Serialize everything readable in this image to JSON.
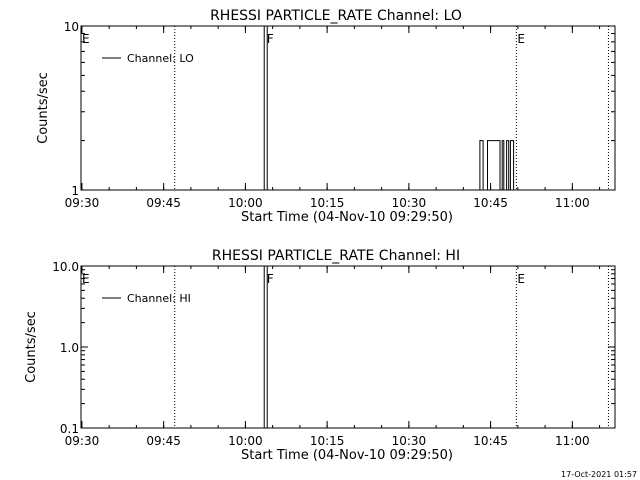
{
  "footer_timestamp": "17-Oct-2021 01:57",
  "chart_data": [
    {
      "type": "line",
      "title": "RHESSI PARTICLE_RATE Channel: LO",
      "xlabel": "Start Time (04-Nov-10 09:29:50)",
      "ylabel": "Counts/sec",
      "x_tick_labels": [
        "09:30",
        "09:45",
        "10:00",
        "10:15",
        "10:30",
        "10:45",
        "11:00"
      ],
      "x_tick_minutes": [
        0.17,
        15.17,
        30.17,
        45.17,
        60.17,
        75.17,
        90.17
      ],
      "xlim_minutes": [
        0,
        98
      ],
      "y_scale": "log",
      "ylim": [
        1,
        10
      ],
      "y_tick_values": [
        1,
        10
      ],
      "y_tick_labels": [
        "1",
        "10"
      ],
      "legend_position": "top-left",
      "legend": [
        "Channel: LO"
      ],
      "markers": [
        {
          "label": "E",
          "time": "09:29:50",
          "minute": 0,
          "style": "dotted"
        },
        {
          "label": "",
          "time": "09:47",
          "minute": 17.2,
          "style": "dotted"
        },
        {
          "label": "F",
          "time": "10:04",
          "minute": 33.9,
          "style": "solid"
        },
        {
          "label": "E",
          "time": "10:50",
          "minute": 79.9,
          "style": "dotted"
        },
        {
          "label": "",
          "time": "11:07",
          "minute": 96.8,
          "style": "dotted"
        }
      ],
      "series": [
        {
          "name": "Channel: LO",
          "x_minutes": [
            73.2,
            73.2,
            73.8,
            73.8,
            74.6,
            74.6,
            76.9,
            76.9,
            77.3,
            77.3,
            77.6,
            77.6,
            78.1,
            78.1,
            78.5,
            78.5,
            78.8,
            78.8,
            79.4,
            79.4
          ],
          "values": [
            1,
            2,
            2,
            1,
            1,
            2,
            2,
            1,
            1,
            2,
            2,
            1,
            1,
            2,
            2,
            1,
            1,
            2,
            2,
            1
          ]
        }
      ]
    },
    {
      "type": "line",
      "title": "RHESSI PARTICLE_RATE Channel: HI",
      "xlabel": "Start Time (04-Nov-10 09:29:50)",
      "ylabel": "Counts/sec",
      "x_tick_labels": [
        "09:30",
        "09:45",
        "10:00",
        "10:15",
        "10:30",
        "10:45",
        "11:00"
      ],
      "x_tick_minutes": [
        0.17,
        15.17,
        30.17,
        45.17,
        60.17,
        75.17,
        90.17
      ],
      "xlim_minutes": [
        0,
        98
      ],
      "y_scale": "log",
      "ylim": [
        0.1,
        10
      ],
      "y_tick_values": [
        0.1,
        1,
        10
      ],
      "y_tick_labels": [
        "0.1",
        "1.0",
        "10.0"
      ],
      "legend_position": "top-left",
      "legend": [
        "Channel: HI"
      ],
      "markers": [
        {
          "label": "E",
          "time": "09:29:50",
          "minute": 0,
          "style": "dotted"
        },
        {
          "label": "",
          "time": "09:47",
          "minute": 17.2,
          "style": "dotted"
        },
        {
          "label": "F",
          "time": "10:04",
          "minute": 33.9,
          "style": "solid"
        },
        {
          "label": "E",
          "time": "10:50",
          "minute": 79.9,
          "style": "dotted"
        },
        {
          "label": "",
          "time": "11:07",
          "minute": 96.8,
          "style": "dotted"
        }
      ],
      "series": [
        {
          "name": "Channel: HI",
          "x_minutes": [],
          "values": []
        }
      ]
    }
  ]
}
